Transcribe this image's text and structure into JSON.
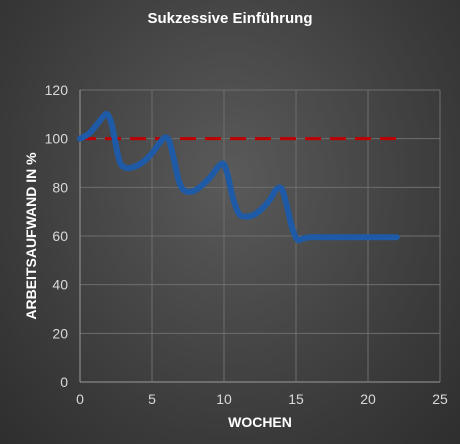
{
  "chart_data": {
    "type": "line",
    "title": "Sukzessive Einführung",
    "xlabel": "WOCHEN",
    "ylabel": "ARBEITSAUFWAND IN %",
    "xlim": [
      0,
      25
    ],
    "ylim": [
      0,
      120
    ],
    "xticks": [
      0,
      5,
      10,
      15,
      20,
      25
    ],
    "yticks": [
      0,
      20,
      40,
      60,
      80,
      100,
      120
    ],
    "grid": true,
    "series": [
      {
        "style": "solid",
        "color": "#1f5aa6",
        "x": [
          0,
          0.6,
          1.2,
          1.6,
          1.9,
          2.2,
          2.5,
          2.8,
          3.2,
          3.8,
          4.4,
          5.0,
          5.5,
          5.9,
          6.2,
          6.5,
          6.9,
          7.3,
          7.9,
          8.5,
          9.1,
          9.6,
          10.0,
          10.3,
          10.6,
          11.0,
          11.4,
          12.0,
          12.6,
          13.2,
          13.6,
          14.0,
          14.3,
          14.7,
          15.1,
          15.5,
          16.0,
          17.0,
          18.0,
          19.0,
          20.0,
          21.0,
          22.0
        ],
        "y": [
          100,
          102,
          106,
          109,
          110,
          106,
          97,
          90,
          88,
          88.5,
          90.5,
          94,
          98,
          100.5,
          99,
          92,
          82,
          78.5,
          78.5,
          81,
          84.5,
          88.5,
          89.5,
          84,
          76,
          69.5,
          68,
          68.5,
          71,
          75,
          79,
          79.5,
          74,
          64,
          58.5,
          59,
          59.5,
          59.5,
          59.5,
          59.5,
          59.5,
          59.5,
          59.5
        ]
      },
      {
        "style": "dashed",
        "color": "#c00000",
        "x": [
          0,
          22
        ],
        "y": [
          100,
          100
        ]
      }
    ]
  }
}
